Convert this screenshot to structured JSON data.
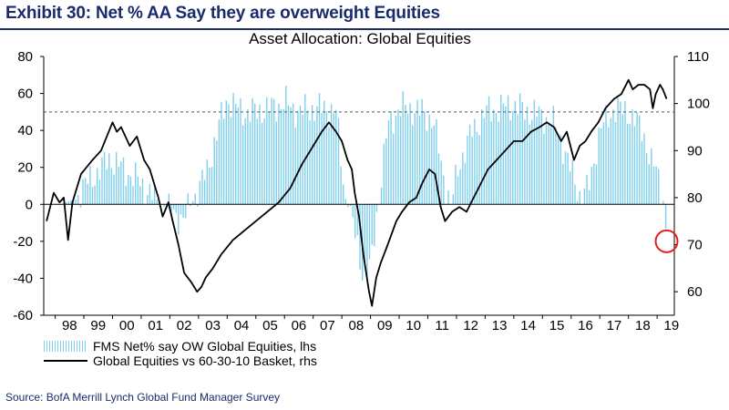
{
  "header": {
    "exhibit_title": "Exhibit 30: Net % AA Say they are overweight Equities",
    "source": "Source:  BofA Merrill Lynch Global Fund Manager Survey"
  },
  "colors": {
    "title": "#1a2b6d",
    "bars": "#7fd0ec",
    "line": "#000000",
    "marker": "#e02020",
    "dashed": "#555555"
  },
  "chart_data": {
    "type": "bar+line",
    "title": "Asset Allocation: Global Equities",
    "categories": [
      "98",
      "99",
      "00",
      "01",
      "02",
      "03",
      "04",
      "05",
      "06",
      "07",
      "08",
      "09",
      "10",
      "11",
      "12",
      "13",
      "14",
      "15",
      "16",
      "17",
      "18",
      "19"
    ],
    "y_left": {
      "lim": [
        -60,
        80
      ],
      "ticks": [
        "80",
        "60",
        "40",
        "20",
        "0",
        "-20",
        "-40",
        "-60"
      ]
    },
    "y_right": {
      "lim": [
        55,
        110
      ],
      "ticks": [
        "110",
        "100",
        "90",
        "80",
        "70",
        "60"
      ]
    },
    "reference_line": {
      "axis": "left",
      "value": 50,
      "style": "dashed"
    },
    "grid": false,
    "legend_position": "bottom-left",
    "series": [
      {
        "name": "FMS Net% say OW Global Equities, lhs",
        "kind": "bar",
        "axis": "left",
        "anchors": [
          [
            1997.8,
            0
          ],
          [
            1998.2,
            0
          ],
          [
            1998.7,
            3
          ],
          [
            1999.0,
            10
          ],
          [
            1999.4,
            16
          ],
          [
            1999.9,
            25
          ],
          [
            2000.3,
            20
          ],
          [
            2000.8,
            14
          ],
          [
            2001.2,
            8
          ],
          [
            2001.7,
            0
          ],
          [
            2002.1,
            -5
          ],
          [
            2002.5,
            -8
          ],
          [
            2002.9,
            5
          ],
          [
            2003.3,
            18
          ],
          [
            2003.7,
            42
          ],
          [
            2004.0,
            57
          ],
          [
            2004.5,
            50
          ],
          [
            2005.0,
            50
          ],
          [
            2005.5,
            52
          ],
          [
            2006.0,
            55
          ],
          [
            2006.5,
            50
          ],
          [
            2007.0,
            52
          ],
          [
            2007.4,
            52
          ],
          [
            2007.8,
            50
          ],
          [
            2008.1,
            5
          ],
          [
            2008.4,
            -12
          ],
          [
            2008.75,
            -38
          ],
          [
            2009.0,
            -35
          ],
          [
            2009.3,
            5
          ],
          [
            2009.6,
            42
          ],
          [
            2010.0,
            52
          ],
          [
            2010.3,
            52
          ],
          [
            2010.8,
            50
          ],
          [
            2011.2,
            45
          ],
          [
            2011.55,
            15
          ],
          [
            2011.8,
            0
          ],
          [
            2012.1,
            22
          ],
          [
            2012.5,
            38
          ],
          [
            2013.0,
            50
          ],
          [
            2013.5,
            52
          ],
          [
            2014.0,
            54
          ],
          [
            2014.5,
            50
          ],
          [
            2015.0,
            48
          ],
          [
            2015.5,
            42
          ],
          [
            2016.0,
            18
          ],
          [
            2016.3,
            5
          ],
          [
            2016.6,
            8
          ],
          [
            2017.0,
            40
          ],
          [
            2017.5,
            52
          ],
          [
            2018.0,
            50
          ],
          [
            2018.5,
            40
          ],
          [
            2018.8,
            22
          ],
          [
            2019.0,
            18
          ],
          [
            2019.2,
            5
          ],
          [
            2019.33,
            -20
          ]
        ]
      },
      {
        "name": "Global Equities vs 60-30-10 Basket, rhs",
        "kind": "line",
        "axis": "right",
        "points": [
          [
            1997.7,
            75
          ],
          [
            1997.95,
            81
          ],
          [
            1998.15,
            79
          ],
          [
            1998.3,
            80
          ],
          [
            1998.45,
            71
          ],
          [
            1998.6,
            79
          ],
          [
            1998.9,
            85
          ],
          [
            1999.3,
            88
          ],
          [
            1999.6,
            90
          ],
          [
            1999.8,
            93
          ],
          [
            2000.0,
            96
          ],
          [
            2000.15,
            94
          ],
          [
            2000.3,
            95
          ],
          [
            2000.6,
            91
          ],
          [
            2000.85,
            93
          ],
          [
            2001.1,
            88
          ],
          [
            2001.3,
            86
          ],
          [
            2001.6,
            80
          ],
          [
            2001.75,
            76
          ],
          [
            2001.95,
            79
          ],
          [
            2002.1,
            75
          ],
          [
            2002.3,
            70
          ],
          [
            2002.5,
            64
          ],
          [
            2002.75,
            62
          ],
          [
            2002.95,
            60
          ],
          [
            2003.1,
            61
          ],
          [
            2003.25,
            63
          ],
          [
            2003.5,
            65
          ],
          [
            2003.8,
            68
          ],
          [
            2004.2,
            71
          ],
          [
            2004.6,
            73
          ],
          [
            2005.0,
            75
          ],
          [
            2005.4,
            77
          ],
          [
            2005.8,
            79
          ],
          [
            2006.2,
            82
          ],
          [
            2006.6,
            87
          ],
          [
            2007.0,
            91
          ],
          [
            2007.3,
            94
          ],
          [
            2007.55,
            96
          ],
          [
            2007.8,
            94
          ],
          [
            2008.0,
            92
          ],
          [
            2008.2,
            88
          ],
          [
            2008.35,
            86
          ],
          [
            2008.45,
            81
          ],
          [
            2008.6,
            76
          ],
          [
            2008.75,
            68
          ],
          [
            2008.95,
            60
          ],
          [
            2009.05,
            57
          ],
          [
            2009.2,
            63
          ],
          [
            2009.35,
            66
          ],
          [
            2009.6,
            70
          ],
          [
            2009.9,
            75
          ],
          [
            2010.1,
            77
          ],
          [
            2010.35,
            79
          ],
          [
            2010.6,
            80
          ],
          [
            2010.8,
            83
          ],
          [
            2011.05,
            86
          ],
          [
            2011.25,
            85
          ],
          [
            2011.45,
            78
          ],
          [
            2011.6,
            75
          ],
          [
            2011.85,
            77
          ],
          [
            2012.1,
            78
          ],
          [
            2012.35,
            77
          ],
          [
            2012.6,
            80
          ],
          [
            2012.85,
            83
          ],
          [
            2013.1,
            86
          ],
          [
            2013.4,
            88
          ],
          [
            2013.7,
            90
          ],
          [
            2014.0,
            92
          ],
          [
            2014.3,
            92
          ],
          [
            2014.6,
            94
          ],
          [
            2014.9,
            95
          ],
          [
            2015.15,
            96
          ],
          [
            2015.4,
            95
          ],
          [
            2015.65,
            92
          ],
          [
            2015.85,
            94
          ],
          [
            2016.1,
            88
          ],
          [
            2016.3,
            91
          ],
          [
            2016.5,
            92
          ],
          [
            2016.7,
            94
          ],
          [
            2016.95,
            96
          ],
          [
            2017.2,
            99
          ],
          [
            2017.5,
            101
          ],
          [
            2017.75,
            102
          ],
          [
            2018.0,
            105
          ],
          [
            2018.15,
            103
          ],
          [
            2018.35,
            104
          ],
          [
            2018.55,
            104
          ],
          [
            2018.75,
            103
          ],
          [
            2018.85,
            99
          ],
          [
            2018.95,
            102
          ],
          [
            2019.1,
            104
          ],
          [
            2019.2,
            103
          ],
          [
            2019.33,
            101
          ]
        ]
      }
    ],
    "annotation": {
      "type": "circle",
      "x": 2019.33,
      "y_left": -20
    }
  }
}
